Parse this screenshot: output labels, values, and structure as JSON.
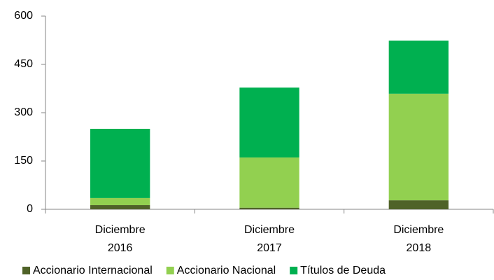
{
  "chart_data": {
    "type": "stacked_bar",
    "categories": [
      "Diciembre 2016",
      "Diciembre 2017",
      "Diciembre 2018"
    ],
    "series": [
      {
        "name": "Accionario Internacional",
        "color": "#4f6228",
        "values": [
          13,
          5,
          28
        ]
      },
      {
        "name": "Accionario Nacional",
        "color": "#92d050",
        "values": [
          22,
          156,
          331
        ]
      },
      {
        "name": "Títulos de Deuda",
        "color": "#00b050",
        "values": [
          215,
          217,
          165
        ]
      }
    ],
    "ylim": [
      0,
      600
    ],
    "yticks": [
      0,
      150,
      300,
      450,
      600
    ],
    "legend": "bottom"
  }
}
